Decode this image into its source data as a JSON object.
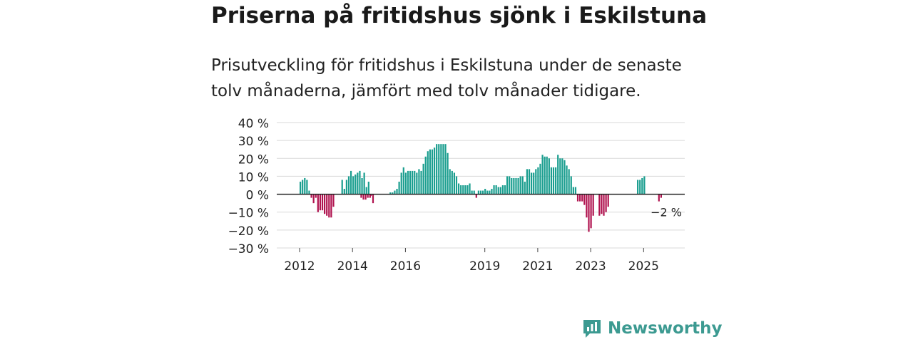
{
  "header": {
    "title": "Priserna på fritidshus sjönk i Eskilstuna",
    "subtitle": "Prisutveckling för fritidshus i Eskilstuna under de senaste tolv månaderna, jämfört med tolv månader tidigare."
  },
  "brand": {
    "name": "Newsworthy",
    "icon": "bar-chart-speech-bubble-icon",
    "color": "#3c9a91"
  },
  "colors": {
    "positive": "#1a9e8f",
    "negative": "#b0134f",
    "grid": "#d9d9d9",
    "zero_line": "#222222"
  },
  "chart_data": {
    "type": "bar",
    "title": "Priserna på fritidshus sjönk i Eskilstuna",
    "ylabel": "",
    "xlabel": "",
    "ylim": [
      -30,
      40
    ],
    "y_ticks": [
      40,
      30,
      20,
      10,
      0,
      -10,
      -20,
      -30
    ],
    "y_tick_labels": [
      "40 %",
      "30 %",
      "20 %",
      "10 %",
      "0 %",
      "−10 %",
      "−20 %",
      "−30 %"
    ],
    "x_tick_labels": [
      "2012",
      "2014",
      "2016",
      "2019",
      "2021",
      "2023",
      "2025"
    ],
    "x_tick_positions": [
      2012,
      2014,
      2016,
      2019,
      2021,
      2023,
      2025
    ],
    "x_start": 2012,
    "annotation": {
      "text": "−2 %",
      "value": -2
    },
    "series": [
      {
        "name": "2012",
        "start": 2012.0,
        "values": [
          7,
          8,
          9,
          8,
          2,
          -2,
          -5,
          -2,
          -10,
          -9,
          -9,
          -11,
          -12,
          -13,
          -13,
          -7
        ]
      },
      {
        "name": "2013b",
        "start": 2013.58,
        "values": [
          8,
          3,
          8,
          10,
          13,
          10,
          11,
          12,
          13,
          9,
          12,
          4,
          7,
          -1,
          -5
        ]
      },
      {
        "name": "2014b",
        "start": 2014.3,
        "values": [
          -2,
          -3,
          -3,
          -2,
          -2
        ]
      },
      {
        "name": "2015",
        "start": 2015.4,
        "values": [
          1,
          1,
          2,
          3,
          7,
          12,
          15,
          12,
          13,
          13,
          13,
          13,
          12,
          14,
          13,
          17,
          21,
          24,
          25,
          25,
          26,
          28,
          28,
          28,
          28,
          28,
          23,
          14,
          13,
          12,
          10,
          6,
          5,
          5,
          5,
          5,
          6,
          2,
          2,
          -2,
          2,
          2,
          2,
          3,
          2,
          2,
          3,
          5,
          5,
          4,
          4,
          5,
          5,
          10,
          10,
          9,
          9,
          9,
          9,
          10,
          10,
          7,
          14,
          14,
          12,
          12,
          14,
          15,
          17,
          22,
          21,
          21,
          20,
          15,
          15,
          15,
          22,
          20,
          20,
          19,
          16,
          14,
          10,
          4,
          4,
          -4,
          -4,
          -4,
          -6,
          -13,
          -21,
          -19,
          -12
        ]
      },
      {
        "name": "2023b",
        "start": 2023.3,
        "values": [
          -12,
          -11,
          -12,
          -10,
          -7
        ]
      },
      {
        "name": "2024",
        "start": 2024.75,
        "values": [
          8,
          8,
          9,
          10
        ]
      },
      {
        "name": "2025",
        "start": 2025.55,
        "values": [
          -4,
          -2
        ]
      }
    ]
  }
}
